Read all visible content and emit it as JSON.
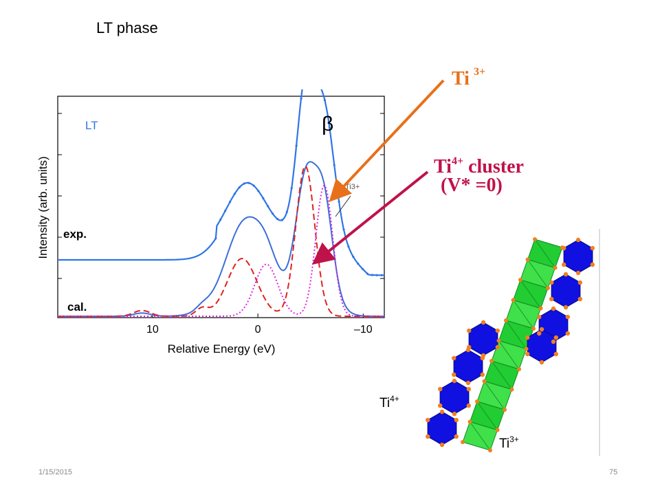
{
  "slide": {
    "title": "LT phase",
    "date": "1/15/2015",
    "page_number": "75"
  },
  "callouts": {
    "ti3": {
      "text": "Ti",
      "sup": "3+",
      "color": "#e8701a"
    },
    "ti4": {
      "text": "Ti",
      "sup": "4+",
      "suffix": " cluster",
      "line2": "(V* =0)",
      "color": "#c0124a"
    }
  },
  "structure_labels": {
    "ti4": {
      "text": "Ti",
      "sup": "4+"
    },
    "ti3": {
      "text": "Ti",
      "sup": "3+"
    }
  },
  "chart_data": {
    "type": "line",
    "panel_label": "LT",
    "peak_label": "β",
    "arrow_label": "Ti3+",
    "xlabel": "Relative Energy (eV)",
    "ylabel": "Intensity (arb. units)",
    "x_reversed": true,
    "xlim": [
      19,
      -12
    ],
    "x_ticks": [
      10,
      0,
      -10
    ],
    "x_tick_labels": [
      "10",
      "0",
      "–10"
    ],
    "series_labels": [
      "exp.",
      "cal."
    ],
    "colors": {
      "exp": "#2f74e6",
      "cal": "#3a6fd8",
      "red_component": "#e02020",
      "magenta_component": "#e020e0"
    }
  }
}
